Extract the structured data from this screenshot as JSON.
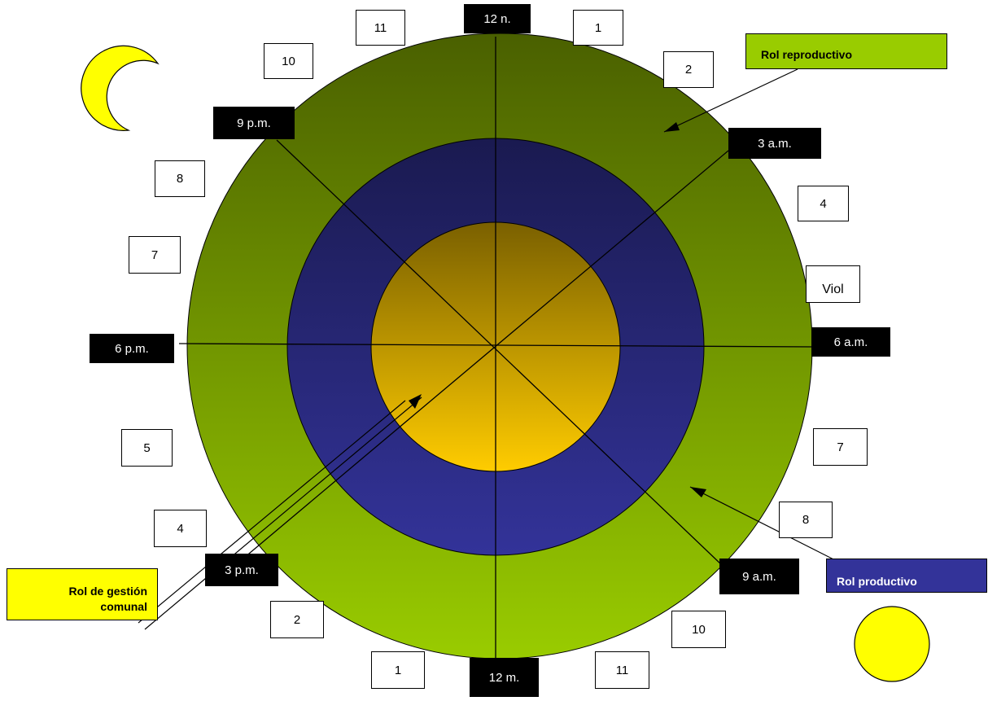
{
  "hour_labels": {
    "noon": "12 n.",
    "three_am": "3 a.m.",
    "six_am": "6 a.m.",
    "nine_am": "9 a.m.",
    "midnight": "12 m.",
    "three_pm": "3 p.m.",
    "six_pm": "6 p.m.",
    "nine_pm": "9 p.m."
  },
  "hour_numbers": {
    "top_1": "1",
    "top_2": "2",
    "right_4": "4",
    "right_viol": "Viol",
    "right_7": "7",
    "right_8": "8",
    "bottom_10": "10",
    "bottom_11": "11",
    "bottom_1": "1",
    "left_2": "2",
    "left_4": "4",
    "left_5": "5",
    "left_7": "7",
    "left_8": "8",
    "top_10": "10",
    "top_11": "11"
  },
  "legend": {
    "reproductive": "Rol reproductivo",
    "productive": "Rol productivo",
    "community_line1": "Rol de gestión",
    "community_line2": "comunal"
  },
  "colors": {
    "outer_ring_top": "#4a6000",
    "outer_ring_bottom": "#99cc00",
    "middle_ring_top": "#1a1a50",
    "middle_ring_bottom": "#333399",
    "core_top": "#7a6000",
    "core_bottom": "#ffcc00",
    "reproductive_box": "#99cc00",
    "productive_box": "#333399",
    "community_box": "#ffff00",
    "moon": "#ffff00",
    "sun": "#ffff00"
  },
  "icons": {
    "moon": "crescent-moon-icon",
    "sun": "sun-icon"
  }
}
